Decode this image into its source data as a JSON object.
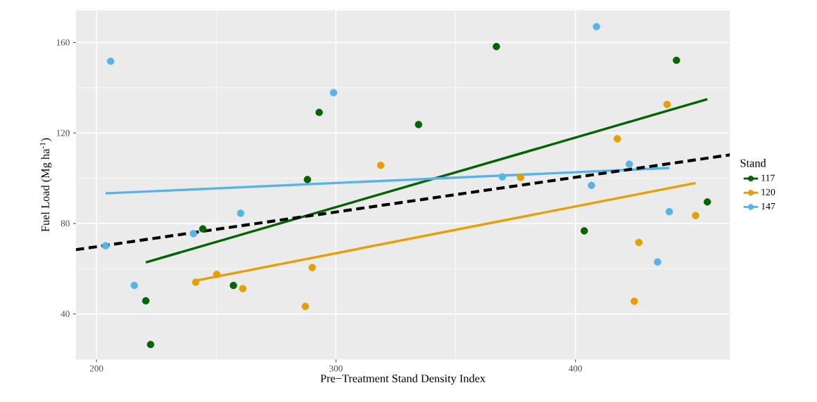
{
  "chart_data": {
    "type": "scatter",
    "xlabel": "Pre−Treatment Stand Density Index",
    "ylabel": "Fuel Load (Mg ha$^{-1}$)",
    "legend_title": "Stand",
    "xlim": [
      191.4,
      464.5
    ],
    "ylim": [
      19.9,
      174.2
    ],
    "xticks": [
      200,
      300,
      400
    ],
    "yticks": [
      40,
      80,
      120,
      160
    ],
    "grid": true,
    "legend": "right",
    "series": [
      {
        "name": "117",
        "marker": "circle",
        "color": "#006400",
        "x": [
          220.6,
          222.6,
          244.4,
          257.2,
          288.1,
          293.0,
          334.5,
          367.0,
          403.7,
          442.2,
          455.1
        ],
        "values": [
          45.8,
          26.5,
          77.6,
          52.6,
          99.4,
          129.1,
          123.7,
          158.2,
          76.7,
          152.1,
          89.5
        ]
      },
      {
        "name": "120",
        "marker": "circle",
        "color": "#E69F00",
        "x": [
          241.4,
          250.2,
          261.1,
          287.2,
          290.1,
          318.7,
          377.1,
          417.5,
          424.6,
          426.5,
          438.3,
          450.2
        ],
        "values": [
          54.0,
          57.5,
          51.2,
          43.3,
          60.5,
          105.7,
          100.3,
          117.4,
          45.6,
          71.6,
          132.6,
          83.5
        ]
      },
      {
        "name": "147",
        "marker": "circle",
        "color": "#56B4E9",
        "x": [
          203.8,
          205.9,
          215.8,
          240.5,
          260.2,
          299.0,
          369.5,
          406.7,
          408.8,
          422.5,
          434.3,
          439.2
        ],
        "values": [
          70.1,
          151.7,
          52.6,
          75.5,
          84.5,
          137.8,
          100.6,
          96.8,
          167.0,
          106.2,
          63.0,
          85.2
        ]
      },
      {
        "type": "line",
        "marker": "none",
        "line_style": "solid",
        "color": "#006400",
        "x": [
          220.6,
          455.1
        ],
        "values": [
          62.8,
          134.9
        ]
      },
      {
        "type": "line",
        "marker": "none",
        "line_style": "solid",
        "color": "#E69F00",
        "x": [
          241.4,
          450.2
        ],
        "values": [
          54.7,
          97.9
        ]
      },
      {
        "type": "line",
        "marker": "none",
        "line_style": "solid",
        "color": "#56B4E9",
        "x": [
          203.8,
          439.2
        ],
        "values": [
          93.3,
          104.5
        ]
      },
      {
        "type": "line",
        "marker": "none",
        "line_style": "dashed",
        "color": "#000000",
        "x": [
          191.4,
          464.5
        ],
        "values": [
          68.4,
          110.3
        ]
      }
    ]
  }
}
